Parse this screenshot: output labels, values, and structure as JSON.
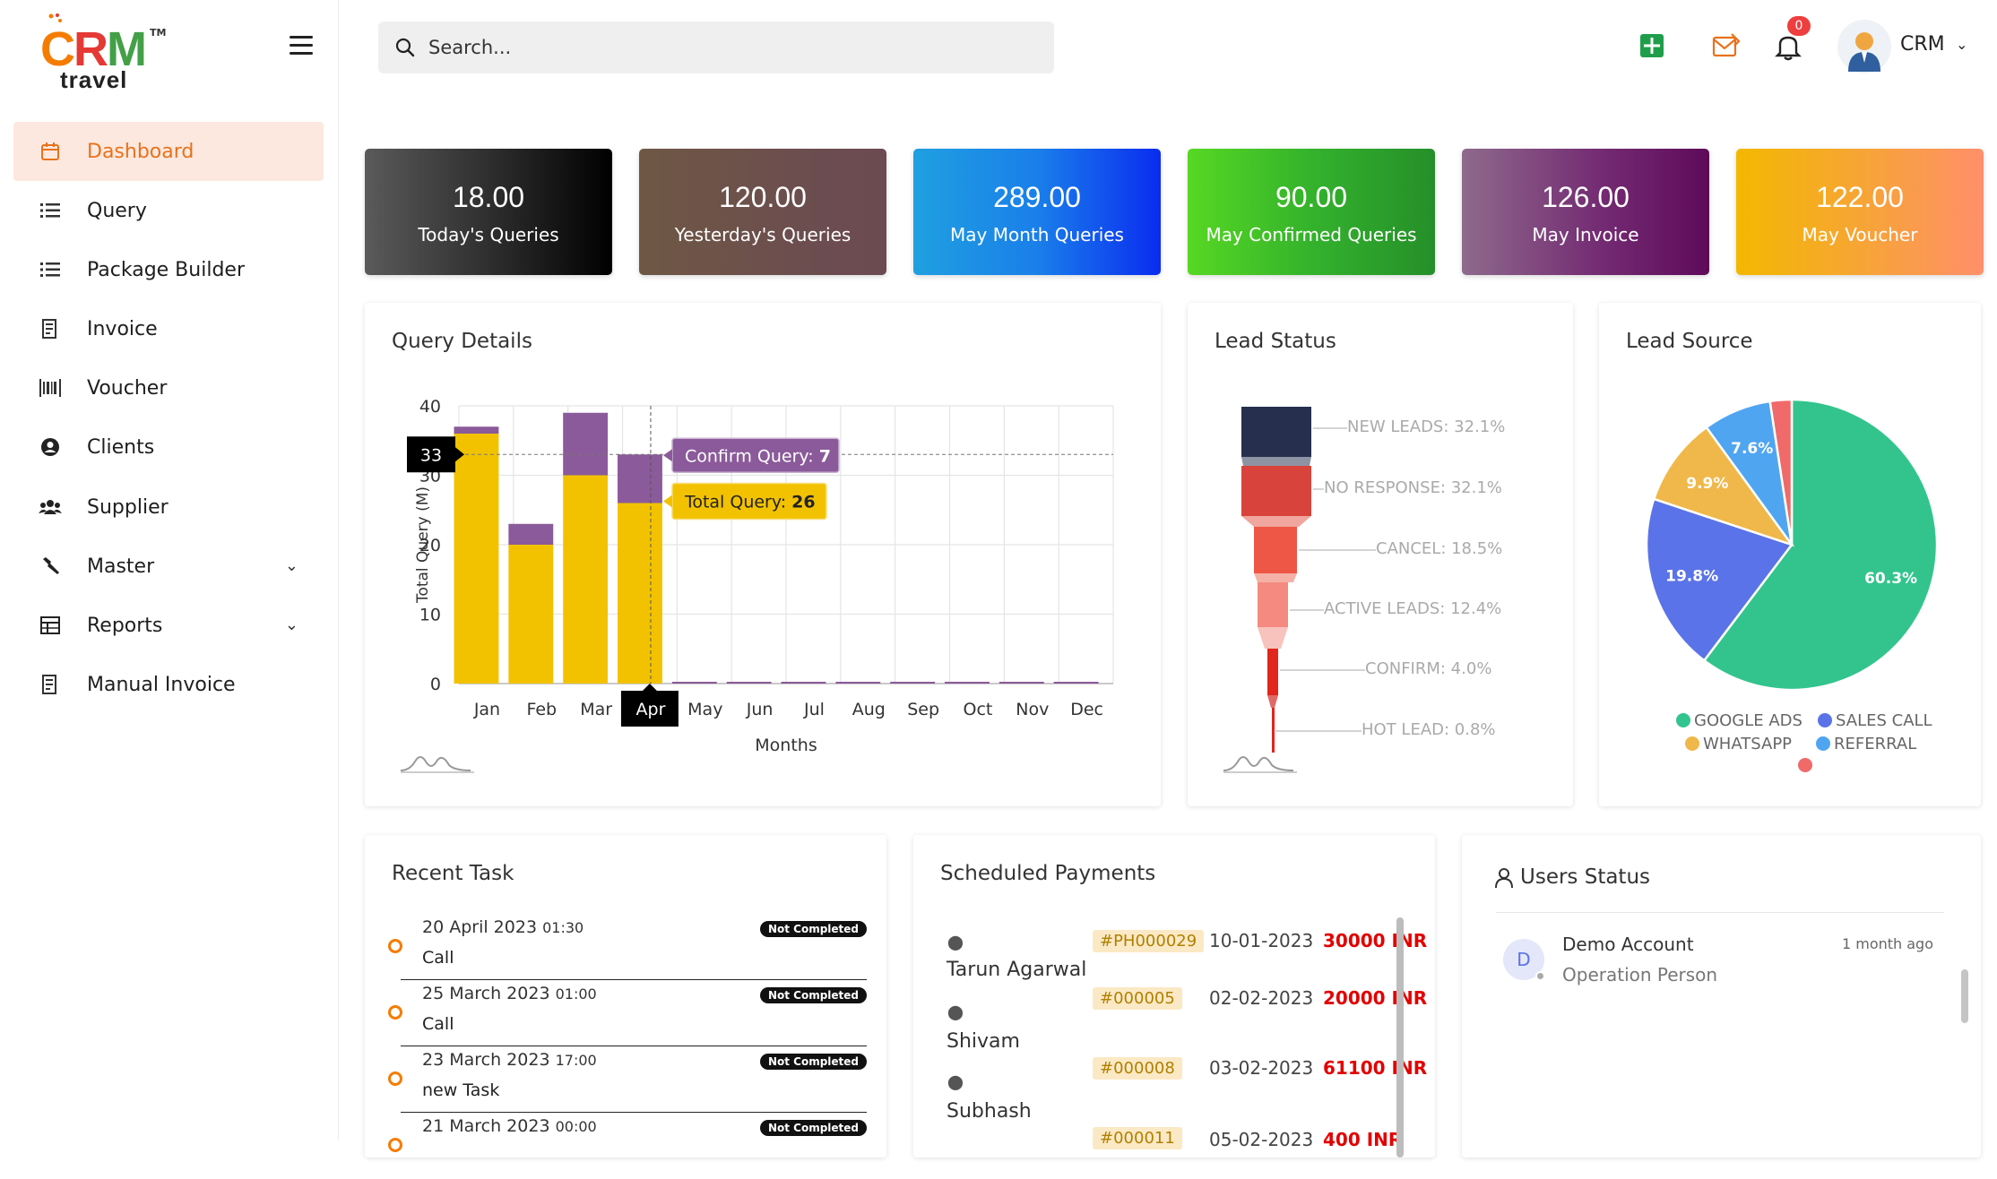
{
  "logo": {
    "letters": [
      "C",
      "R",
      "M"
    ],
    "tm": "TM",
    "subtitle": "travel"
  },
  "sidebar": {
    "items": [
      {
        "label": "Dashboard",
        "icon": "calendar-icon",
        "active": true
      },
      {
        "label": "Query",
        "icon": "list-icon"
      },
      {
        "label": "Package Builder",
        "icon": "list-icon"
      },
      {
        "label": "Invoice",
        "icon": "invoice-icon"
      },
      {
        "label": "Voucher",
        "icon": "barcode-icon"
      },
      {
        "label": "Clients",
        "icon": "user-circle-icon"
      },
      {
        "label": "Supplier",
        "icon": "users-icon"
      },
      {
        "label": "Master",
        "icon": "wrench-icon",
        "expandable": true
      },
      {
        "label": "Reports",
        "icon": "report-icon",
        "expandable": true
      },
      {
        "label": "Manual Invoice",
        "icon": "invoice-icon"
      }
    ]
  },
  "header": {
    "search_placeholder": "Search...",
    "notification_count": "0",
    "user_name": "CRM"
  },
  "cards": [
    {
      "value": "18.00",
      "label": "Today's Queries",
      "bg": "linear-gradient(90deg,#5a5a5a 0%,#2a2a2a 55%,#000 100%)"
    },
    {
      "value": "120.00",
      "label": "Yesterday's Queries",
      "bg": "linear-gradient(90deg,#6e5844 0%,#6d4f4d 55%,#6b4a52 100%)"
    },
    {
      "value": "289.00",
      "label": "May Month Queries",
      "bg": "linear-gradient(90deg,#1fa0e0 0%,#1a7fea 50%,#0a2cf0 100%)"
    },
    {
      "value": "90.00",
      "label": "May Confirmed Queries",
      "bg": "linear-gradient(90deg,#57d823 0%,#34b22c 50%,#258f2a 100%)"
    },
    {
      "value": "126.00",
      "label": "May Invoice",
      "bg": "linear-gradient(90deg,#8e6a8c 0%,#742c73 55%,#5e0a5a 100%)"
    },
    {
      "value": "122.00",
      "label": "May Voucher",
      "bg": "linear-gradient(90deg,#f3b800 0%,#f7a33a 55%,#ff8f6a 100%)"
    }
  ],
  "query_details": {
    "title": "Query Details",
    "tooltip_confirm_label": "Confirm Query:",
    "tooltip_confirm_value": "7",
    "tooltip_total_label": "Total Query:",
    "tooltip_total_value": "26",
    "crosshair_value": "33",
    "highlight_month": "Apr"
  },
  "lead_status": {
    "title": "Lead Status",
    "items": [
      {
        "label": "NEW LEADS: 32.1%",
        "value": 32.1,
        "color": "#262f4e"
      },
      {
        "label": "NO RESPONSE: 32.1%",
        "value": 32.1,
        "color": "#d8433b"
      },
      {
        "label": "CANCEL: 18.5%",
        "value": 18.5,
        "color": "#ee5745"
      },
      {
        "label": "ACTIVE LEADS: 12.4%",
        "value": 12.4,
        "color": "#f48a80"
      },
      {
        "label": "CONFIRM: 4.0%",
        "value": 4.0,
        "color": "#e0261d"
      },
      {
        "label": "HOT LEAD: 0.8%",
        "value": 0.8,
        "color": "#e0261d"
      }
    ]
  },
  "lead_source": {
    "title": "Lead Source",
    "legend": [
      {
        "label": "GOOGLE ADS",
        "color": "#33c48d"
      },
      {
        "label": "SALES CALL",
        "color": "#5b73e8"
      },
      {
        "label": "WHATSAPP",
        "color": "#f0b84a"
      },
      {
        "label": "REFERRAL",
        "color": "#50a5f1"
      },
      {
        "label": "",
        "color": "#f06a6a"
      }
    ]
  },
  "recent_task": {
    "title": "Recent Task",
    "items": [
      {
        "date": "20 April 2023",
        "time": "01:30",
        "kind": "Call",
        "status": "Not Completed"
      },
      {
        "date": "25 March 2023",
        "time": "01:00",
        "kind": "Call",
        "status": "Not Completed"
      },
      {
        "date": "23 March 2023",
        "time": "17:00",
        "kind": "new Task",
        "status": "Not Completed"
      },
      {
        "date": "21 March 2023",
        "time": "00:00",
        "kind": "",
        "status": "Not Completed"
      }
    ]
  },
  "payments": {
    "title": "Scheduled Payments",
    "rows": [
      {
        "name": "",
        "id": "#PH000029",
        "date": "10-01-2023",
        "amount": "30000 INR"
      },
      {
        "name": "Tarun Agarwal",
        "id": "#000005",
        "date": "02-02-2023",
        "amount": "20000 INR"
      },
      {
        "name": "Shivam",
        "id": "#000008",
        "date": "03-02-2023",
        "amount": "61100 INR"
      },
      {
        "name": "Subhash",
        "id": "#000011",
        "date": "05-02-2023",
        "amount": "400 INR"
      }
    ]
  },
  "users_status": {
    "title": "Users Status",
    "users": [
      {
        "initial": "D",
        "name": "Demo Account",
        "role": "Operation Person",
        "time": "1 month ago"
      }
    ]
  },
  "chart_data": [
    {
      "type": "bar",
      "title": "Query Details",
      "xlabel": "Months",
      "ylabel": "Total Query (M)",
      "ylim": [
        0,
        40
      ],
      "yticks": [
        0,
        10,
        20,
        30,
        40
      ],
      "stacked": true,
      "categories": [
        "Jan",
        "Feb",
        "Mar",
        "Apr",
        "May",
        "Jun",
        "Jul",
        "Aug",
        "Sep",
        "Oct",
        "Nov",
        "Dec"
      ],
      "series": [
        {
          "name": "Total Query",
          "color": "#f2c200",
          "values": [
            36,
            20,
            30,
            26,
            0,
            0,
            0,
            0,
            0,
            0,
            0,
            0
          ]
        },
        {
          "name": "Confirm Query",
          "color": "#8b5a9a",
          "values": [
            1,
            3,
            9,
            7,
            0,
            0,
            0,
            0,
            0,
            0,
            0,
            0
          ]
        }
      ]
    },
    {
      "type": "pie",
      "title": "Lead Source",
      "slices": [
        {
          "label": "GOOGLE ADS",
          "value": 60.3,
          "text": "60.3%",
          "color": "#33c48d"
        },
        {
          "label": "SALES CALL",
          "value": 19.8,
          "text": "19.8%",
          "color": "#5b73e8"
        },
        {
          "label": "WHATSAPP",
          "value": 9.9,
          "text": "9.9%",
          "color": "#f0b84a"
        },
        {
          "label": "REFERRAL",
          "value": 7.6,
          "text": "7.6%",
          "color": "#50a5f1"
        },
        {
          "label": "",
          "value": 2.4,
          "text": "",
          "color": "#f06a6a"
        }
      ]
    }
  ]
}
